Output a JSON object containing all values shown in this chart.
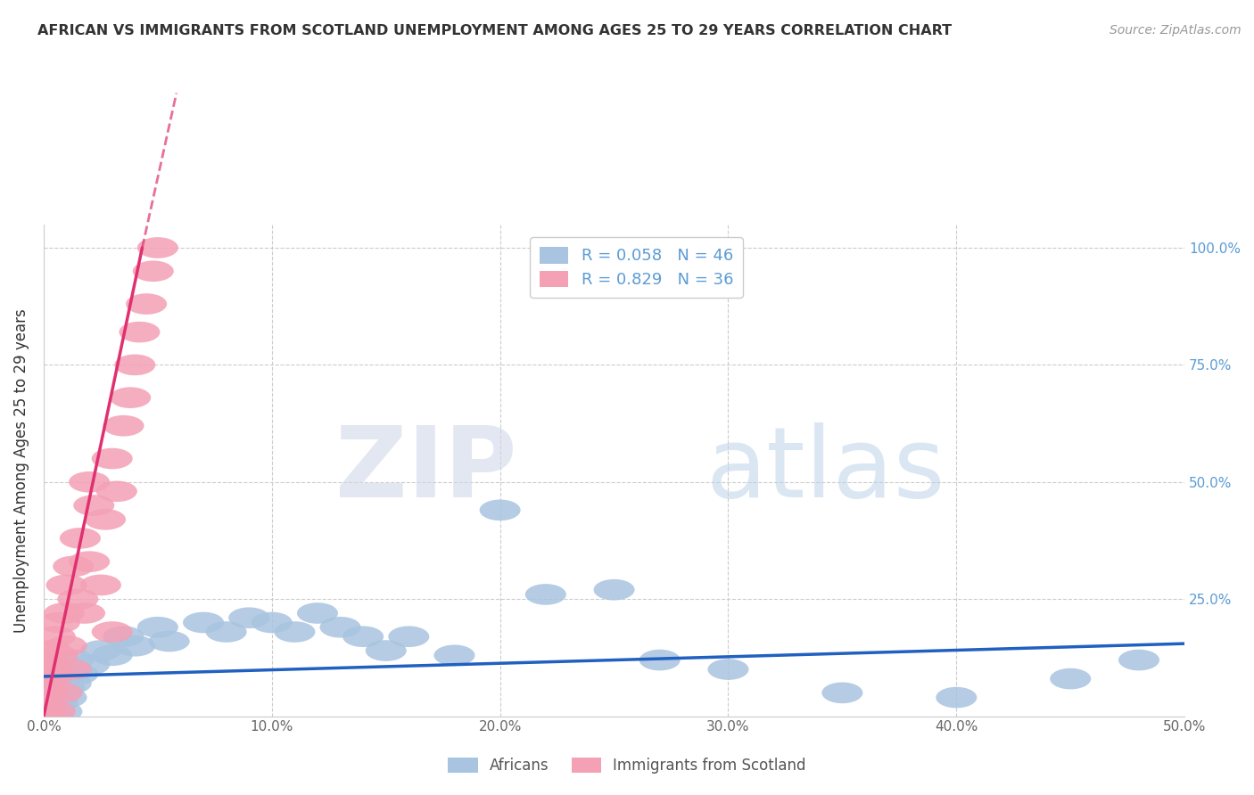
{
  "title": "AFRICAN VS IMMIGRANTS FROM SCOTLAND UNEMPLOYMENT AMONG AGES 25 TO 29 YEARS CORRELATION CHART",
  "source": "Source: ZipAtlas.com",
  "ylabel": "Unemployment Among Ages 25 to 29 years",
  "xlim": [
    0.0,
    0.5
  ],
  "ylim": [
    0.0,
    1.05
  ],
  "xticks": [
    0.0,
    0.1,
    0.2,
    0.3,
    0.4,
    0.5
  ],
  "yticks": [
    0.0,
    0.25,
    0.5,
    0.75,
    1.0
  ],
  "xticklabels": [
    "0.0%",
    "10.0%",
    "20.0%",
    "30.0%",
    "40.0%",
    "50.0%"
  ],
  "yticklabels_right": [
    "",
    "25.0%",
    "50.0%",
    "75.0%",
    "100.0%"
  ],
  "africans_R": 0.058,
  "africans_N": 46,
  "scotland_R": 0.829,
  "scotland_N": 36,
  "africans_color": "#a8c4e0",
  "scotland_color": "#f4a0b5",
  "trend_africans_color": "#2060c0",
  "trend_scotland_color": "#e03070",
  "watermark_zip": "ZIP",
  "watermark_atlas": "atlas",
  "legend_africans": "Africans",
  "legend_scotland": "Immigrants from Scotland",
  "africans_x": [
    0.001,
    0.001,
    0.002,
    0.002,
    0.003,
    0.003,
    0.004,
    0.004,
    0.005,
    0.005,
    0.006,
    0.007,
    0.008,
    0.009,
    0.01,
    0.01,
    0.012,
    0.013,
    0.015,
    0.02,
    0.025,
    0.03,
    0.035,
    0.04,
    0.05,
    0.055,
    0.07,
    0.08,
    0.09,
    0.1,
    0.11,
    0.12,
    0.13,
    0.14,
    0.15,
    0.16,
    0.18,
    0.2,
    0.22,
    0.25,
    0.27,
    0.3,
    0.35,
    0.4,
    0.45,
    0.48
  ],
  "africans_y": [
    0.01,
    0.05,
    0.0,
    0.03,
    0.01,
    0.04,
    0.0,
    0.06,
    0.02,
    0.07,
    0.03,
    0.05,
    0.01,
    0.06,
    0.04,
    0.09,
    0.07,
    0.12,
    0.09,
    0.11,
    0.14,
    0.13,
    0.17,
    0.15,
    0.19,
    0.16,
    0.2,
    0.18,
    0.21,
    0.2,
    0.18,
    0.22,
    0.19,
    0.17,
    0.14,
    0.17,
    0.13,
    0.44,
    0.26,
    0.27,
    0.12,
    0.1,
    0.05,
    0.04,
    0.08,
    0.12
  ],
  "scotland_x": [
    0.001,
    0.001,
    0.001,
    0.002,
    0.002,
    0.003,
    0.003,
    0.004,
    0.005,
    0.005,
    0.006,
    0.007,
    0.008,
    0.009,
    0.01,
    0.01,
    0.012,
    0.013,
    0.015,
    0.016,
    0.018,
    0.02,
    0.022,
    0.025,
    0.027,
    0.03,
    0.032,
    0.035,
    0.038,
    0.04,
    0.042,
    0.045,
    0.048,
    0.05,
    0.03,
    0.02
  ],
  "scotland_y": [
    0.02,
    0.07,
    0.12,
    0.0,
    0.05,
    0.08,
    0.14,
    0.1,
    0.01,
    0.17,
    0.13,
    0.2,
    0.05,
    0.22,
    0.15,
    0.28,
    0.1,
    0.32,
    0.25,
    0.38,
    0.22,
    0.33,
    0.45,
    0.28,
    0.42,
    0.55,
    0.48,
    0.62,
    0.68,
    0.75,
    0.82,
    0.88,
    0.95,
    1.0,
    0.18,
    0.5
  ],
  "africa_trend_x": [
    0.0,
    0.5
  ],
  "africa_trend_y_start": 0.085,
  "africa_trend_y_end": 0.155,
  "scotland_trend_x0": 0.0,
  "scotland_trend_y0": 0.05,
  "scotland_trend_slope": 22.0
}
